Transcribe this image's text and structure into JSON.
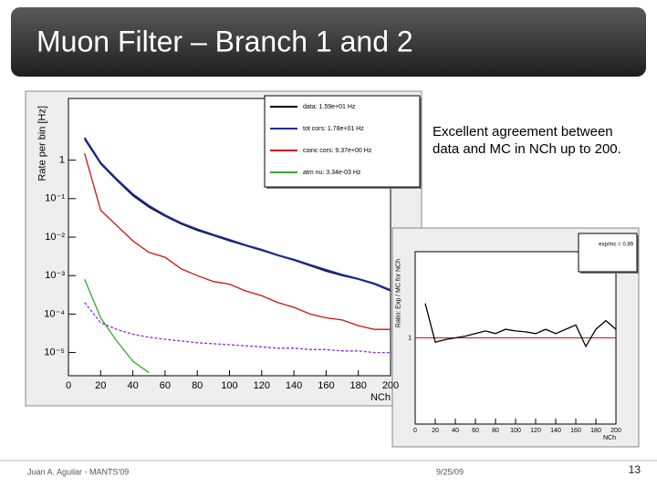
{
  "slide": {
    "title": "Muon Filter – Branch 1 and 2",
    "text": "Excellent agreement between data and MC in NCh up to 200.",
    "footer_left": "Juan A. Aguilar - MANTS'09",
    "footer_center": "9/25/09",
    "page_number": "13"
  },
  "chart_data": [
    {
      "type": "line",
      "log_y": true,
      "ylabel": "Rate per bin [Hz]",
      "xlabel": "NCh",
      "x": [
        10,
        20,
        30,
        40,
        50,
        60,
        70,
        80,
        90,
        100,
        110,
        120,
        130,
        140,
        150,
        160,
        170,
        180,
        190,
        200
      ],
      "xlim": [
        0,
        200
      ],
      "xticks": [
        0,
        20,
        40,
        60,
        80,
        100,
        120,
        140,
        160,
        180,
        200
      ],
      "ylim": [
        2.5e-06,
        40
      ],
      "yticks": [
        1,
        {
          "value": 0.1,
          "label": "10⁻¹"
        },
        {
          "value": 0.01,
          "label": "10⁻²"
        },
        {
          "value": 0.001,
          "label": "10⁻³"
        },
        {
          "value": 0.0001,
          "label": "10⁻⁴"
        },
        {
          "value": 1e-05,
          "label": "10⁻⁵"
        }
      ],
      "legend": "upper right",
      "series": [
        {
          "name": "data: 1.59e+01 Hz",
          "color": "#000000",
          "values": [
            3.5,
            0.8,
            0.3,
            0.12,
            0.06,
            0.035,
            0.022,
            0.015,
            0.011,
            0.008,
            0.006,
            0.0045,
            0.0033,
            0.0025,
            0.0018,
            0.0013,
            0.001,
            0.0008,
            0.0006,
            0.0004
          ]
        },
        {
          "name": "tot cors: 1.78e+01 Hz",
          "color": "#1a2a9a",
          "values": [
            3.8,
            0.85,
            0.32,
            0.13,
            0.065,
            0.037,
            0.023,
            0.016,
            0.0115,
            0.0085,
            0.0062,
            0.0047,
            0.0034,
            0.0026,
            0.0019,
            0.0014,
            0.00105,
            0.00082,
            0.00062,
            0.00042
          ]
        },
        {
          "name": "coinc cors: 9.37e+00 Hz",
          "color": "#cc1111",
          "values": [
            1.5,
            0.05,
            0.02,
            0.008,
            0.004,
            0.003,
            0.0015,
            0.001,
            0.0007,
            0.0006,
            0.0004,
            0.0003,
            0.0002,
            0.00015,
            0.0001,
            8e-05,
            7e-05,
            5e-05,
            4e-05,
            4e-05
          ]
        },
        {
          "name": "atm nu: 3.34e-03 Hz",
          "color": "#33aa33",
          "values": [
            0.0008,
            8e-05,
            2e-05,
            6e-06,
            3e-06,
            null,
            null,
            null,
            null,
            null,
            null,
            null,
            null,
            null,
            null,
            null,
            null,
            null,
            null,
            null
          ]
        },
        {
          "color": "#8a2be2",
          "dashed": true,
          "values": [
            0.0002,
            6e-05,
            4e-05,
            3e-05,
            2.5e-05,
            2.2e-05,
            2e-05,
            1.8e-05,
            1.7e-05,
            1.6e-05,
            1.5e-05,
            1.4e-05,
            1.3e-05,
            1.3e-05,
            1.2e-05,
            1.2e-05,
            1.1e-05,
            1.1e-05,
            1e-05,
            1e-05
          ]
        }
      ]
    },
    {
      "type": "line",
      "log_y": false,
      "ylabel": "Ratio: Exp / MC for NCh",
      "xlabel": "NCh",
      "x": [
        10,
        20,
        30,
        40,
        50,
        60,
        70,
        80,
        90,
        100,
        110,
        120,
        130,
        140,
        150,
        160,
        170,
        180,
        190,
        200
      ],
      "xlim": [
        0,
        200
      ],
      "xticks": [
        0,
        20,
        40,
        60,
        80,
        100,
        120,
        140,
        160,
        180,
        200
      ],
      "ylim": [
        0,
        2
      ],
      "yticks": [
        1
      ],
      "legend": "upper right",
      "legend_text": "exp/mc = 0.89",
      "reference_line": {
        "value": 1,
        "color": "#cc1111"
      },
      "series": [
        {
          "color": "#000000",
          "values": [
            1.4,
            0.95,
            0.98,
            1.0,
            1.02,
            1.05,
            1.08,
            1.05,
            1.1,
            1.08,
            1.07,
            1.05,
            1.1,
            1.05,
            1.1,
            1.15,
            0.9,
            1.1,
            1.2,
            1.1
          ]
        }
      ]
    }
  ]
}
